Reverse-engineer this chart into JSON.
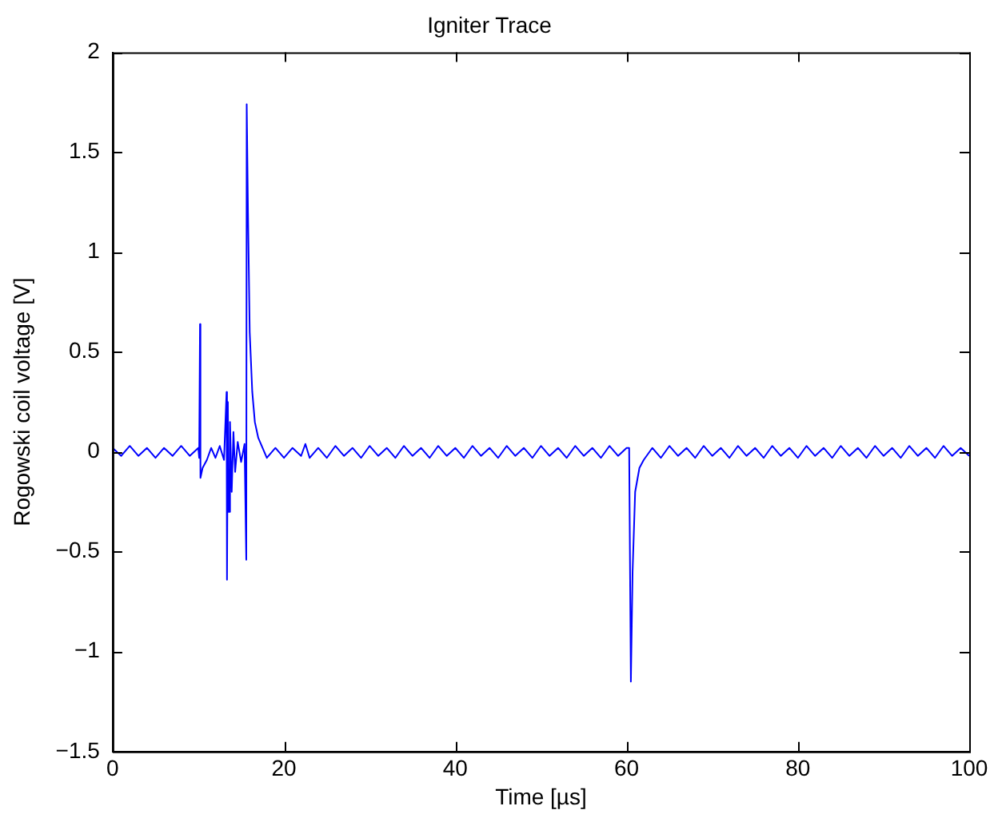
{
  "chart_data": {
    "type": "line",
    "title": "Igniter Trace",
    "xlabel": "Time [µs]",
    "ylabel": "Rogowski coil voltage [V]",
    "xlim": [
      0,
      100
    ],
    "xticks": [
      0,
      20,
      40,
      60,
      80,
      100
    ],
    "ylim": [
      -1.5,
      2
    ],
    "yticks": [
      {
        "value": -1.5,
        "label": "−1.5"
      },
      {
        "value": -1,
        "label": "−1"
      },
      {
        "value": -0.5,
        "label": "−0.5"
      },
      0,
      0.5,
      1,
      1.5,
      2
    ],
    "grid": false,
    "legend": false,
    "marker": "none",
    "line_style": "solid",
    "series": [
      {
        "color": "#0000ff",
        "x": [
          0,
          1,
          2,
          3,
          4,
          5,
          6,
          7,
          8,
          9,
          10,
          10.1,
          10.2,
          10.25,
          10.5,
          11,
          11.5,
          12,
          12.5,
          13,
          13.3,
          13.35,
          13.45,
          13.55,
          13.7,
          13.9,
          14.1,
          14.3,
          14.6,
          15,
          15.4,
          15.6,
          15.65,
          15.8,
          16,
          16.3,
          16.6,
          17,
          17.5,
          18,
          19,
          20,
          21,
          22,
          22.5,
          23,
          24,
          25,
          26,
          27,
          28,
          29,
          30,
          31,
          32,
          33,
          34,
          35,
          36,
          37,
          38,
          39,
          40,
          41,
          42,
          43,
          44,
          45,
          46,
          47,
          48,
          49,
          50,
          51,
          52,
          53,
          54,
          55,
          56,
          57,
          58,
          59,
          60,
          60.3,
          60.5,
          60.7,
          61,
          61.5,
          62,
          63,
          64,
          65,
          66,
          67,
          68,
          69,
          70,
          71,
          72,
          73,
          74,
          75,
          76,
          77,
          78,
          79,
          80,
          81,
          82,
          83,
          84,
          85,
          86,
          87,
          88,
          89,
          90,
          91,
          92,
          93,
          94,
          95,
          96,
          97,
          98,
          99,
          100
        ],
        "values": [
          0.02,
          -0.02,
          0.03,
          -0.02,
          0.02,
          -0.03,
          0.02,
          -0.02,
          0.03,
          -0.02,
          0.02,
          -0.03,
          0.64,
          -0.13,
          -0.08,
          -0.04,
          0.02,
          -0.03,
          0.03,
          -0.04,
          0.3,
          -0.64,
          0.25,
          -0.3,
          0.15,
          -0.2,
          0.1,
          -0.1,
          0.05,
          -0.05,
          0.04,
          -0.54,
          1.74,
          1.2,
          0.6,
          0.3,
          0.15,
          0.07,
          0.02,
          -0.03,
          0.02,
          -0.03,
          0.02,
          -0.02,
          0.04,
          -0.03,
          0.02,
          -0.03,
          0.03,
          -0.02,
          0.02,
          -0.03,
          0.03,
          -0.02,
          0.02,
          -0.03,
          0.03,
          -0.02,
          0.02,
          -0.03,
          0.03,
          -0.02,
          0.02,
          -0.03,
          0.03,
          -0.02,
          0.02,
          -0.03,
          0.03,
          -0.02,
          0.02,
          -0.03,
          0.03,
          -0.02,
          0.02,
          -0.03,
          0.03,
          -0.02,
          0.02,
          -0.03,
          0.03,
          -0.02,
          0.02,
          0.02,
          -1.15,
          -0.6,
          -0.2,
          -0.08,
          -0.04,
          0.02,
          -0.03,
          0.03,
          -0.02,
          0.02,
          -0.03,
          0.03,
          -0.02,
          0.02,
          -0.03,
          0.03,
          -0.02,
          0.02,
          -0.03,
          0.03,
          -0.02,
          0.02,
          -0.03,
          0.03,
          -0.02,
          0.02,
          -0.03,
          0.03,
          -0.02,
          0.02,
          -0.03,
          0.03,
          -0.02,
          0.02,
          -0.03,
          0.03,
          -0.02,
          0.02,
          -0.03,
          0.03,
          -0.02,
          0.02,
          -0.02
        ]
      }
    ]
  }
}
